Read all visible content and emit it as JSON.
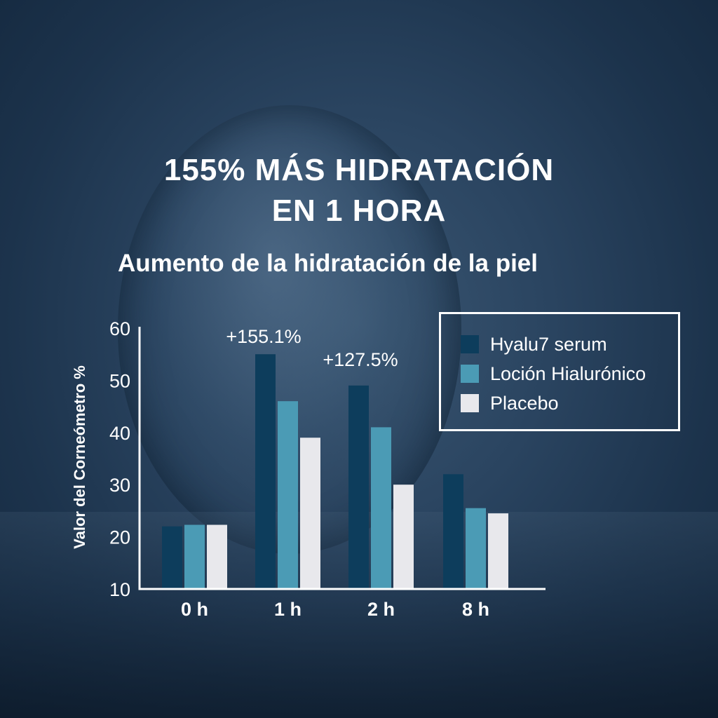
{
  "headline": {
    "line1": "155% MÁS HIDRATACIÓN",
    "line2": "EN 1 HORA"
  },
  "subtitle": "Aumento de la hidratación de la piel",
  "colors": {
    "serum": "#0d3d5c",
    "locion": "#4b9bb5",
    "placebo": "#e8e8ec",
    "text": "#ffffff"
  },
  "chart_data": {
    "type": "bar",
    "ylabel": "Valor del Corneómetro %",
    "ylim": [
      10,
      60
    ],
    "yticks": [
      10,
      20,
      30,
      40,
      50,
      60
    ],
    "categories": [
      "0 h",
      "1 h",
      "2 h",
      "8 h"
    ],
    "series": [
      {
        "name": "Hyalu7 serum",
        "color": "#0d3d5c",
        "values": [
          22,
          55,
          49,
          32
        ]
      },
      {
        "name": "Loción Hialurónico",
        "color": "#4b9bb5",
        "values": [
          22.3,
          46,
          41,
          25.5
        ]
      },
      {
        "name": "Placebo",
        "color": "#e8e8ec",
        "values": [
          22.3,
          39,
          30,
          24.5
        ]
      }
    ],
    "annotations": [
      {
        "text": "+155.1%",
        "category": "1 h"
      },
      {
        "text": "+127.5%",
        "category": "2 h"
      }
    ],
    "grid": false,
    "legend_position": "top-right"
  }
}
